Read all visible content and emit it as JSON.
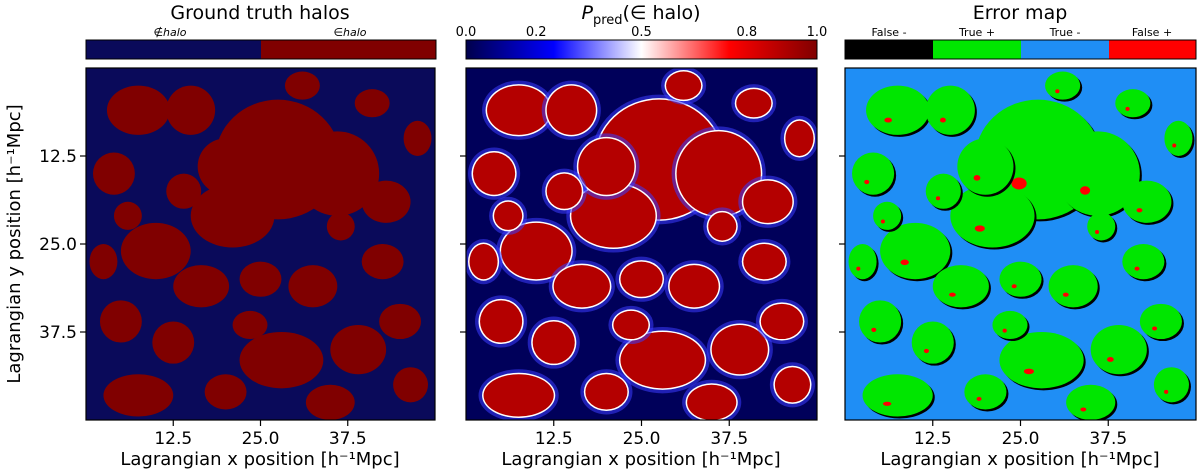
{
  "chart_data": [
    {
      "type": "heatmap",
      "title": "Ground truth halos",
      "xlabel": "Lagrangian x position [h⁻¹Mpc]",
      "ylabel": "Lagrangian y position [h⁻¹Mpc]",
      "xticks": [
        "12.5",
        "25.0",
        "37.5"
      ],
      "yticks": [
        "12.5",
        "25.0",
        "37.5"
      ],
      "xlim": [
        0,
        50
      ],
      "ylim": [
        0,
        50
      ],
      "colorbar": {
        "type": "categorical",
        "categories": [
          {
            "label": "∉halo",
            "color": "#0a0a5a"
          },
          {
            "label": "∈halo",
            "color": "#800000"
          }
        ]
      }
    },
    {
      "type": "heatmap",
      "title": "P_pred(∈ halo)",
      "title_parts": {
        "main": "P",
        "sub": "pred",
        "rest": "(∈ halo)"
      },
      "xlabel": "Lagrangian x position [h⁻¹Mpc]",
      "xticks": [
        "12.5",
        "25.0",
        "37.5"
      ],
      "xlim": [
        0,
        50
      ],
      "ylim": [
        0,
        50
      ],
      "colorbar": {
        "type": "continuous",
        "colormap": "seismic",
        "range": [
          0.0,
          1.0
        ],
        "ticks": [
          "0.0",
          "0.2",
          "0.5",
          "0.8",
          "1.0"
        ],
        "tick_values": [
          0.0,
          0.2,
          0.5,
          0.8,
          1.0
        ]
      }
    },
    {
      "type": "heatmap",
      "title": "Error map",
      "xlabel": "Lagrangian x position [h⁻¹Mpc]",
      "xticks": [
        "12.5",
        "25.0",
        "37.5"
      ],
      "xlim": [
        0,
        50
      ],
      "ylim": [
        0,
        50
      ],
      "colorbar": {
        "type": "categorical",
        "categories": [
          {
            "label": "False -",
            "color": "#000000"
          },
          {
            "label": "True +",
            "color": "#00e600"
          },
          {
            "label": "True -",
            "color": "#1f8ef5"
          },
          {
            "label": "False +",
            "color": "#ff0000"
          }
        ]
      }
    }
  ],
  "colors": {
    "ground_truth_background": "#0a0a5a",
    "ground_truth_halo": "#800000",
    "probability_background": "#00005a",
    "probability_halo": "#b40000",
    "error_true_negative": "#1f8ef5",
    "error_true_positive": "#00e600",
    "error_false_negative": "#000000",
    "error_false_positive": "#ff0000"
  }
}
